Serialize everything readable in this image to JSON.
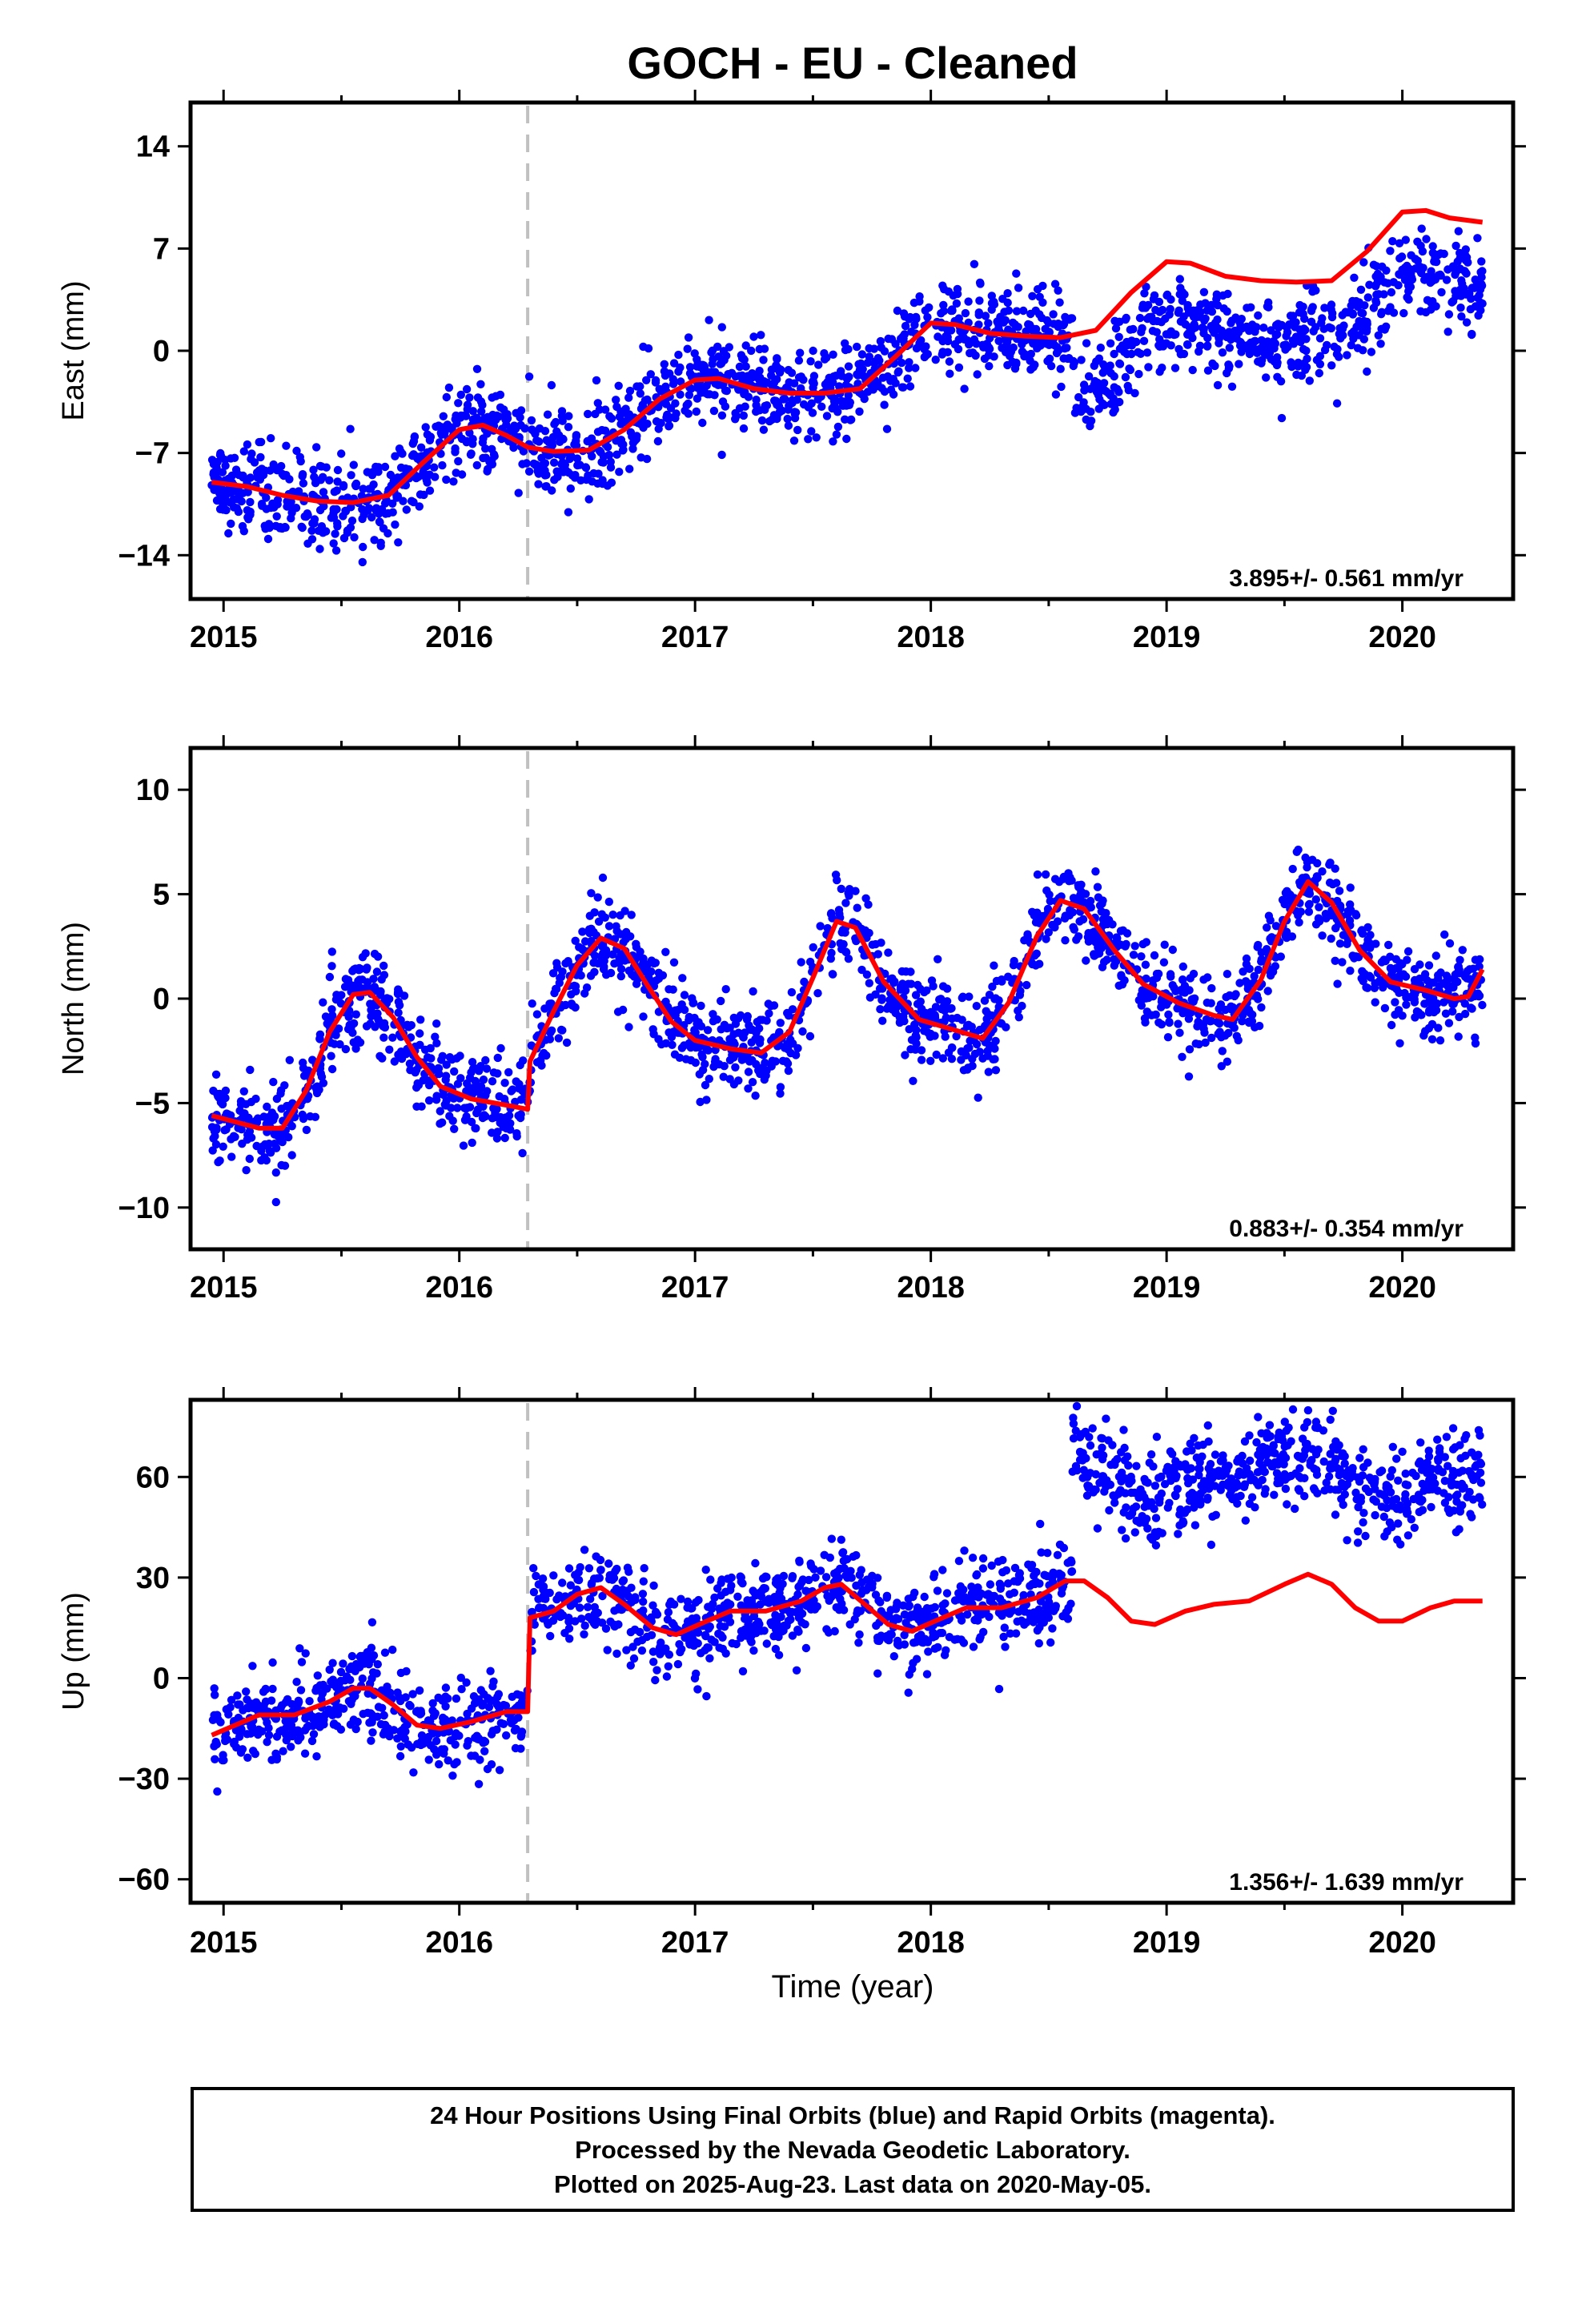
{
  "figure": {
    "title": "GOCH  - EU - Cleaned",
    "xlabel": "Time (year)",
    "caption_lines": [
      "24 Hour Positions Using Final Orbits (blue) and Rapid Orbits (magenta).",
      "Processed by the Nevada Geodetic Laboratory.",
      "Plotted on 2025-Aug-23. Last data on 2020-May-05."
    ],
    "colors": {
      "points": "#0000ff",
      "model": "#ff0000",
      "equipment_change": "#c0c0c0",
      "frame": "#000000"
    }
  },
  "chart_data": [
    {
      "type": "scatter",
      "ylabel": "East (mm)",
      "rate_text": "3.895+/- 0.561 mm/yr",
      "xlim": [
        2014.86,
        2020.47
      ],
      "ylim": [
        -17,
        17
      ],
      "x_ticks": [
        2015,
        2016,
        2017,
        2018,
        2019,
        2020
      ],
      "y_ticks": [
        -14,
        -7,
        0,
        7,
        14
      ],
      "equipment_change": 2016.29,
      "data_span": [
        2014.95,
        2020.34
      ],
      "observations_model": {
        "note_points": "dense daily solution cloud around the model",
        "offset_after_2018_6": -4.0
      },
      "model": [
        [
          2014.95,
          -9.0
        ],
        [
          2015.1,
          -9.3
        ],
        [
          2015.25,
          -9.9
        ],
        [
          2015.4,
          -10.3
        ],
        [
          2015.55,
          -10.4
        ],
        [
          2015.7,
          -9.9
        ],
        [
          2015.85,
          -7.6
        ],
        [
          2016.0,
          -5.4
        ],
        [
          2016.1,
          -5.1
        ],
        [
          2016.2,
          -5.8
        ],
        [
          2016.29,
          -6.6
        ],
        [
          2016.4,
          -6.9
        ],
        [
          2016.55,
          -6.8
        ],
        [
          2016.7,
          -5.4
        ],
        [
          2016.85,
          -3.3
        ],
        [
          2017.0,
          -2.0
        ],
        [
          2017.1,
          -1.9
        ],
        [
          2017.25,
          -2.6
        ],
        [
          2017.4,
          -2.9
        ],
        [
          2017.55,
          -2.9
        ],
        [
          2017.7,
          -2.6
        ],
        [
          2017.85,
          -0.4
        ],
        [
          2018.0,
          1.9
        ],
        [
          2018.1,
          1.8
        ],
        [
          2018.25,
          1.2
        ],
        [
          2018.4,
          1.0
        ],
        [
          2018.55,
          0.9
        ],
        [
          2018.7,
          1.4
        ],
        [
          2018.85,
          4.0
        ],
        [
          2019.0,
          6.1
        ],
        [
          2019.1,
          6.0
        ],
        [
          2019.25,
          5.1
        ],
        [
          2019.4,
          4.8
        ],
        [
          2019.55,
          4.7
        ],
        [
          2019.7,
          4.8
        ],
        [
          2019.85,
          6.8
        ],
        [
          2020.0,
          9.5
        ],
        [
          2020.1,
          9.6
        ],
        [
          2020.2,
          9.1
        ],
        [
          2020.34,
          8.8
        ]
      ],
      "point_counts": 1900
    },
    {
      "type": "scatter",
      "ylabel": "North (mm)",
      "rate_text": "0.883+/- 0.354 mm/yr",
      "xlim": [
        2014.86,
        2020.47
      ],
      "ylim": [
        -12,
        12
      ],
      "x_ticks": [
        2015,
        2016,
        2017,
        2018,
        2019,
        2020
      ],
      "y_ticks": [
        -10,
        -5,
        0,
        5,
        10
      ],
      "equipment_change": 2016.29,
      "data_span": [
        2014.95,
        2020.34
      ],
      "model": [
        [
          2014.95,
          -5.6
        ],
        [
          2015.05,
          -5.9
        ],
        [
          2015.15,
          -6.2
        ],
        [
          2015.25,
          -6.2
        ],
        [
          2015.35,
          -4.4
        ],
        [
          2015.45,
          -1.6
        ],
        [
          2015.55,
          0.2
        ],
        [
          2015.62,
          0.3
        ],
        [
          2015.72,
          -0.9
        ],
        [
          2015.82,
          -2.8
        ],
        [
          2015.92,
          -4.2
        ],
        [
          2016.05,
          -4.8
        ],
        [
          2016.2,
          -5.1
        ],
        [
          2016.29,
          -5.3
        ],
        [
          2016.3,
          -3.0
        ],
        [
          2016.4,
          -0.6
        ],
        [
          2016.5,
          1.6
        ],
        [
          2016.6,
          2.9
        ],
        [
          2016.7,
          2.4
        ],
        [
          2016.8,
          0.6
        ],
        [
          2016.9,
          -1.1
        ],
        [
          2017.0,
          -2.0
        ],
        [
          2017.15,
          -2.4
        ],
        [
          2017.28,
          -2.6
        ],
        [
          2017.4,
          -1.6
        ],
        [
          2017.5,
          1.0
        ],
        [
          2017.6,
          3.7
        ],
        [
          2017.68,
          3.4
        ],
        [
          2017.8,
          0.8
        ],
        [
          2017.95,
          -1.0
        ],
        [
          2018.1,
          -1.5
        ],
        [
          2018.22,
          -1.9
        ],
        [
          2018.33,
          -0.2
        ],
        [
          2018.45,
          3.0
        ],
        [
          2018.55,
          4.7
        ],
        [
          2018.65,
          4.3
        ],
        [
          2018.78,
          2.3
        ],
        [
          2018.9,
          0.7
        ],
        [
          2019.05,
          -0.2
        ],
        [
          2019.2,
          -0.8
        ],
        [
          2019.28,
          -1.0
        ],
        [
          2019.4,
          0.9
        ],
        [
          2019.5,
          3.7
        ],
        [
          2019.6,
          5.6
        ],
        [
          2019.7,
          4.6
        ],
        [
          2019.82,
          2.3
        ],
        [
          2019.95,
          0.8
        ],
        [
          2020.1,
          0.4
        ],
        [
          2020.22,
          0.0
        ],
        [
          2020.28,
          0.1
        ],
        [
          2020.34,
          1.4
        ]
      ],
      "point_counts": 1900
    },
    {
      "type": "scatter",
      "ylabel": "Up (mm)",
      "rate_text": "1.356+/- 1.639 mm/yr",
      "xlim": [
        2014.86,
        2020.47
      ],
      "ylim": [
        -67,
        83
      ],
      "x_ticks": [
        2015,
        2016,
        2017,
        2018,
        2019,
        2020
      ],
      "y_ticks": [
        -60,
        -30,
        0,
        30,
        60
      ],
      "equipment_change": 2016.29,
      "data_span": [
        2014.95,
        2020.34
      ],
      "observations_model": {
        "offset_after_2018_6": 37.0
      },
      "model": [
        [
          2014.95,
          -17
        ],
        [
          2015.05,
          -14
        ],
        [
          2015.15,
          -11
        ],
        [
          2015.3,
          -11
        ],
        [
          2015.45,
          -7
        ],
        [
          2015.55,
          -3
        ],
        [
          2015.62,
          -3
        ],
        [
          2015.72,
          -8
        ],
        [
          2015.82,
          -14
        ],
        [
          2015.92,
          -15
        ],
        [
          2016.05,
          -13
        ],
        [
          2016.2,
          -10
        ],
        [
          2016.29,
          -10
        ],
        [
          2016.3,
          18
        ],
        [
          2016.4,
          20
        ],
        [
          2016.5,
          25
        ],
        [
          2016.6,
          27
        ],
        [
          2016.7,
          22
        ],
        [
          2016.82,
          15
        ],
        [
          2016.92,
          13
        ],
        [
          2017.05,
          17
        ],
        [
          2017.15,
          20
        ],
        [
          2017.3,
          20
        ],
        [
          2017.45,
          23
        ],
        [
          2017.55,
          27
        ],
        [
          2017.62,
          28
        ],
        [
          2017.72,
          22
        ],
        [
          2017.82,
          16
        ],
        [
          2017.92,
          14
        ],
        [
          2018.05,
          18
        ],
        [
          2018.15,
          21
        ],
        [
          2018.3,
          21
        ],
        [
          2018.45,
          24
        ],
        [
          2018.57,
          29
        ],
        [
          2018.65,
          29
        ],
        [
          2018.75,
          24
        ],
        [
          2018.85,
          17
        ],
        [
          2018.95,
          16
        ],
        [
          2019.08,
          20
        ],
        [
          2019.2,
          22
        ],
        [
          2019.35,
          23
        ],
        [
          2019.5,
          28
        ],
        [
          2019.6,
          31
        ],
        [
          2019.7,
          28
        ],
        [
          2019.8,
          21
        ],
        [
          2019.9,
          17
        ],
        [
          2020.0,
          17
        ],
        [
          2020.12,
          21
        ],
        [
          2020.22,
          23
        ],
        [
          2020.34,
          23
        ]
      ],
      "point_counts": 1900
    }
  ]
}
